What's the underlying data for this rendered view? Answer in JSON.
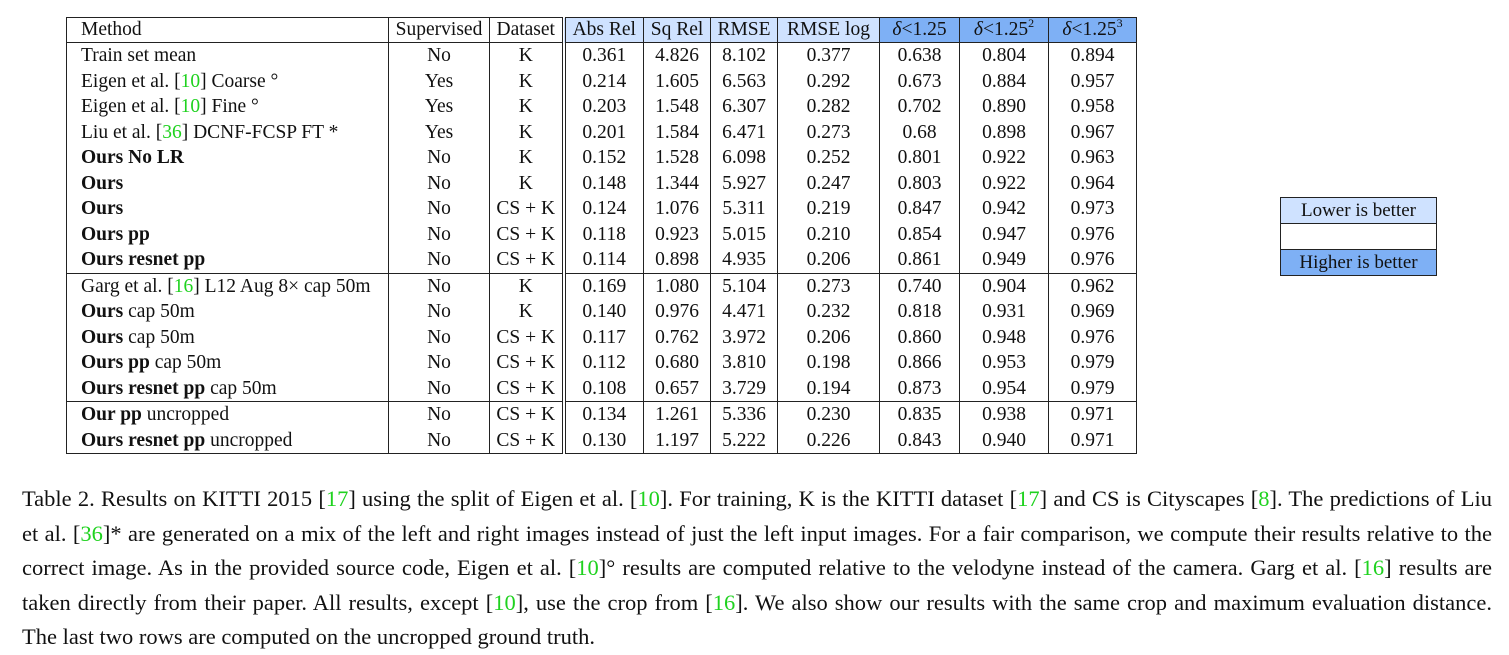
{
  "table": {
    "headers": {
      "method": "Method",
      "supervised": "Supervised",
      "dataset": "Dataset",
      "abs_rel": "Abs Rel",
      "sq_rel": "Sq Rel",
      "rmse": "RMSE",
      "rmse_log": "RMSE log",
      "delta1": "1.25",
      "delta2": "1.25",
      "delta2_exp": "2",
      "delta3": "1.25",
      "delta3_exp": "3",
      "delta_symbol": "δ",
      "lt": "<"
    },
    "rows": [
      {
        "method_bold": "",
        "method_cite": "",
        "method_pre": "Train set mean",
        "method_rest": "",
        "supervised": "No",
        "dataset": "K",
        "abs_rel": "0.361",
        "sq_rel": "4.826",
        "rmse": "8.102",
        "rmse_log": "0.377",
        "d1": "0.638",
        "d2": "0.804",
        "d3": "0.894"
      },
      {
        "method_bold": "",
        "method_pre": "Eigen et al. [",
        "method_cite": "10",
        "method_rest": "] Coarse °",
        "supervised": "Yes",
        "dataset": "K",
        "abs_rel": "0.214",
        "sq_rel": "1.605",
        "rmse": "6.563",
        "rmse_log": "0.292",
        "d1": "0.673",
        "d2": "0.884",
        "d3": "0.957"
      },
      {
        "method_bold": "",
        "method_pre": "Eigen et al. [",
        "method_cite": "10",
        "method_rest": "] Fine °",
        "supervised": "Yes",
        "dataset": "K",
        "abs_rel": "0.203",
        "sq_rel": "1.548",
        "rmse": "6.307",
        "rmse_log": "0.282",
        "d1": "0.702",
        "d2": "0.890",
        "d3": "0.958"
      },
      {
        "method_bold": "",
        "method_pre": "Liu et al. [",
        "method_cite": "36",
        "method_rest": "] DCNF-FCSP FT *",
        "supervised": "Yes",
        "dataset": "K",
        "abs_rel": "0.201",
        "sq_rel": "1.584",
        "rmse": "6.471",
        "rmse_log": "0.273",
        "d1": "0.68",
        "d2": "0.898",
        "d3": "0.967"
      },
      {
        "method_bold": "Ours No LR",
        "method_pre": "",
        "method_cite": "",
        "method_rest": "",
        "supervised": "No",
        "dataset": "K",
        "abs_rel": "0.152",
        "sq_rel": "1.528",
        "rmse": "6.098",
        "rmse_log": "0.252",
        "d1": "0.801",
        "d2": "0.922",
        "d3": "0.963"
      },
      {
        "method_bold": "Ours",
        "method_pre": "",
        "method_cite": "",
        "method_rest": "",
        "supervised": "No",
        "dataset": "K",
        "abs_rel": "0.148",
        "sq_rel": "1.344",
        "rmse": "5.927",
        "rmse_log": "0.247",
        "d1": "0.803",
        "d2": "0.922",
        "d3": "0.964"
      },
      {
        "method_bold": "Ours",
        "method_pre": "",
        "method_cite": "",
        "method_rest": "",
        "supervised": "No",
        "dataset": "CS + K",
        "abs_rel": "0.124",
        "sq_rel": "1.076",
        "rmse": "5.311",
        "rmse_log": "0.219",
        "d1": "0.847",
        "d2": "0.942",
        "d3": "0.973"
      },
      {
        "method_bold": "Ours pp",
        "method_pre": "",
        "method_cite": "",
        "method_rest": "",
        "supervised": "No",
        "dataset": "CS + K",
        "abs_rel": "0.118",
        "sq_rel": "0.923",
        "rmse": "5.015",
        "rmse_log": "0.210",
        "d1": "0.854",
        "d2": "0.947",
        "d3": "0.976"
      },
      {
        "method_bold": "Ours resnet pp",
        "method_pre": "",
        "method_cite": "",
        "method_rest": "",
        "supervised": "No",
        "dataset": "CS + K",
        "abs_rel": "0.114",
        "sq_rel": "0.898",
        "rmse": "4.935",
        "rmse_log": "0.206",
        "d1": "0.861",
        "d2": "0.949",
        "d3": "0.976"
      },
      {
        "method_bold": "",
        "method_pre": "Garg et al. [",
        "method_cite": "16",
        "method_rest": "] L12 Aug 8× cap 50m",
        "supervised": "No",
        "dataset": "K",
        "abs_rel": "0.169",
        "sq_rel": "1.080",
        "rmse": "5.104",
        "rmse_log": "0.273",
        "d1": "0.740",
        "d2": "0.904",
        "d3": "0.962"
      },
      {
        "method_bold": "Ours",
        "method_pre": "",
        "method_cite": "",
        "method_rest": " cap 50m",
        "supervised": "No",
        "dataset": "K",
        "abs_rel": "0.140",
        "sq_rel": "0.976",
        "rmse": "4.471",
        "rmse_log": "0.232",
        "d1": "0.818",
        "d2": "0.931",
        "d3": "0.969"
      },
      {
        "method_bold": "Ours",
        "method_pre": "",
        "method_cite": "",
        "method_rest": " cap 50m",
        "supervised": "No",
        "dataset": "CS + K",
        "abs_rel": "0.117",
        "sq_rel": "0.762",
        "rmse": "3.972",
        "rmse_log": "0.206",
        "d1": "0.860",
        "d2": "0.948",
        "d3": "0.976"
      },
      {
        "method_bold": "Ours pp",
        "method_pre": "",
        "method_cite": "",
        "method_rest": " cap 50m",
        "supervised": "No",
        "dataset": "CS + K",
        "abs_rel": "0.112",
        "sq_rel": "0.680",
        "rmse": "3.810",
        "rmse_log": "0.198",
        "d1": "0.866",
        "d2": "0.953",
        "d3": "0.979"
      },
      {
        "method_bold": "Ours resnet pp",
        "method_pre": "",
        "method_cite": "",
        "method_rest": " cap 50m",
        "supervised": "No",
        "dataset": "CS + K",
        "abs_rel": "0.108",
        "sq_rel": "0.657",
        "rmse": "3.729",
        "rmse_log": "0.194",
        "d1": "0.873",
        "d2": "0.954",
        "d3": "0.979"
      },
      {
        "method_bold": "Our pp",
        "method_pre": "",
        "method_cite": "",
        "method_rest": " uncropped",
        "supervised": "No",
        "dataset": "CS + K",
        "abs_rel": "0.134",
        "sq_rel": "1.261",
        "rmse": "5.336",
        "rmse_log": "0.230",
        "d1": "0.835",
        "d2": "0.938",
        "d3": "0.971"
      },
      {
        "method_bold": "Ours resnet pp",
        "method_pre": "",
        "method_cite": "",
        "method_rest": " uncropped",
        "supervised": "No",
        "dataset": "CS + K",
        "abs_rel": "0.130",
        "sq_rel": "1.197",
        "rmse": "5.222",
        "rmse_log": "0.226",
        "d1": "0.843",
        "d2": "0.940",
        "d3": "0.971"
      }
    ]
  },
  "legend": {
    "lower": "Lower is better",
    "higher": "Higher is better"
  },
  "caption": {
    "p1": "Table 2. Results on KITTI 2015 [",
    "c1": "17",
    "p2": "] using the split of Eigen et al. [",
    "c2": "10",
    "p3": "]. For training, K is the KITTI dataset [",
    "c3": "17",
    "p4": "] and CS is Cityscapes [",
    "c4": "8",
    "p5": "]. The predictions of Liu et al. [",
    "c5": "36",
    "p6": "]* are generated on a mix of the left and right images instead of just the left input images. For a fair comparison, we compute their results relative to the correct image. As in the provided source code, Eigen et al. [",
    "c6": "10",
    "p7": "]° results are computed relative to the velodyne instead of the camera. Garg et al. [",
    "c7": "16",
    "p8": "] results are taken directly from their paper. All results, except [",
    "c8": "10",
    "p9": "], use the crop from [",
    "c9": "16",
    "p10": "]. We also show our results with the same crop and maximum evaluation distance. The last two rows are computed on the uncropped ground truth."
  },
  "colors": {
    "lower_is_better": "#cfe2ff",
    "higher_is_better": "#7eb0f5",
    "citation": "#1fd21f"
  },
  "bold_cells": {
    "row_8": [
      "abs_rel",
      "sq_rel",
      "rmse",
      "rmse_log",
      "d1",
      "d2",
      "d3"
    ],
    "row_7": [
      "d3"
    ],
    "row_13": [
      "abs_rel",
      "sq_rel",
      "rmse",
      "rmse_log",
      "d1",
      "d2",
      "d3"
    ],
    "row_12": [
      "d3"
    ]
  }
}
